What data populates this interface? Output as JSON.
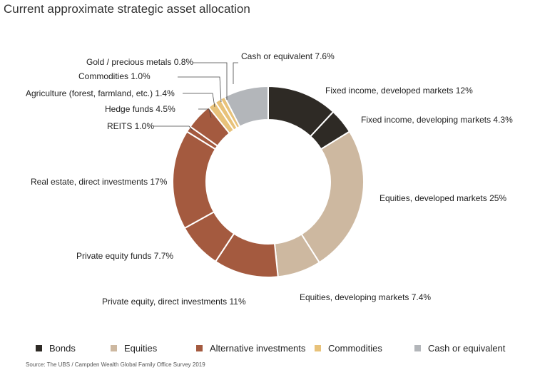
{
  "title": "Current approximate strategic asset allocation",
  "source": "Source: The UBS / Campden Wealth Global Family Office Survey 2019",
  "legend": [
    {
      "label": "Bonds",
      "color": "#2e2a25"
    },
    {
      "label": "Equities",
      "color": "#cdb8a0"
    },
    {
      "label": "Alternative investments",
      "color": "#a45a3f"
    },
    {
      "label": "Commodities",
      "color": "#e8c27a"
    },
    {
      "label": "Cash or equivalent",
      "color": "#b3b6ba"
    }
  ],
  "chart_data": {
    "type": "pie",
    "donut": true,
    "title": "Current approximate strategic asset allocation",
    "slices": [
      {
        "label": "Fixed income, developed markets 12%",
        "value": 12,
        "group": "Bonds",
        "color": "#2e2a25"
      },
      {
        "label": "Fixed income, developing markets 4.3%",
        "value": 4.3,
        "group": "Bonds",
        "color": "#2e2a25"
      },
      {
        "label": "Equities, developed markets 25%",
        "value": 25,
        "group": "Equities",
        "color": "#cdb8a0"
      },
      {
        "label": "Equities, developing markets 7.4%",
        "value": 7.4,
        "group": "Equities",
        "color": "#cdb8a0"
      },
      {
        "label": "Private equity, direct investments 11%",
        "value": 11,
        "group": "Alternative investments",
        "color": "#a45a3f"
      },
      {
        "label": "Private equity funds 7.7%",
        "value": 7.7,
        "group": "Alternative investments",
        "color": "#a45a3f"
      },
      {
        "label": "Real estate, direct investments 17%",
        "value": 17,
        "group": "Alternative investments",
        "color": "#a45a3f"
      },
      {
        "label": "REITS 1.0%",
        "value": 1.0,
        "group": "Alternative investments",
        "color": "#a45a3f"
      },
      {
        "label": "Hedge funds 4.5%",
        "value": 4.5,
        "group": "Alternative investments",
        "color": "#a45a3f"
      },
      {
        "label": "Agriculture (forest, farmland, etc.) 1.4%",
        "value": 1.4,
        "group": "Commodities",
        "color": "#e8c27a"
      },
      {
        "label": "Commodities 1.0%",
        "value": 1.0,
        "group": "Commodities",
        "color": "#e8c27a"
      },
      {
        "label": "Gold / precious metals 0.8%",
        "value": 0.8,
        "group": "Commodities",
        "color": "#e8c27a"
      },
      {
        "label": "Cash or equivalent 7.6%",
        "value": 7.6,
        "group": "Cash or equivalent",
        "color": "#b3b6ba"
      }
    ]
  }
}
